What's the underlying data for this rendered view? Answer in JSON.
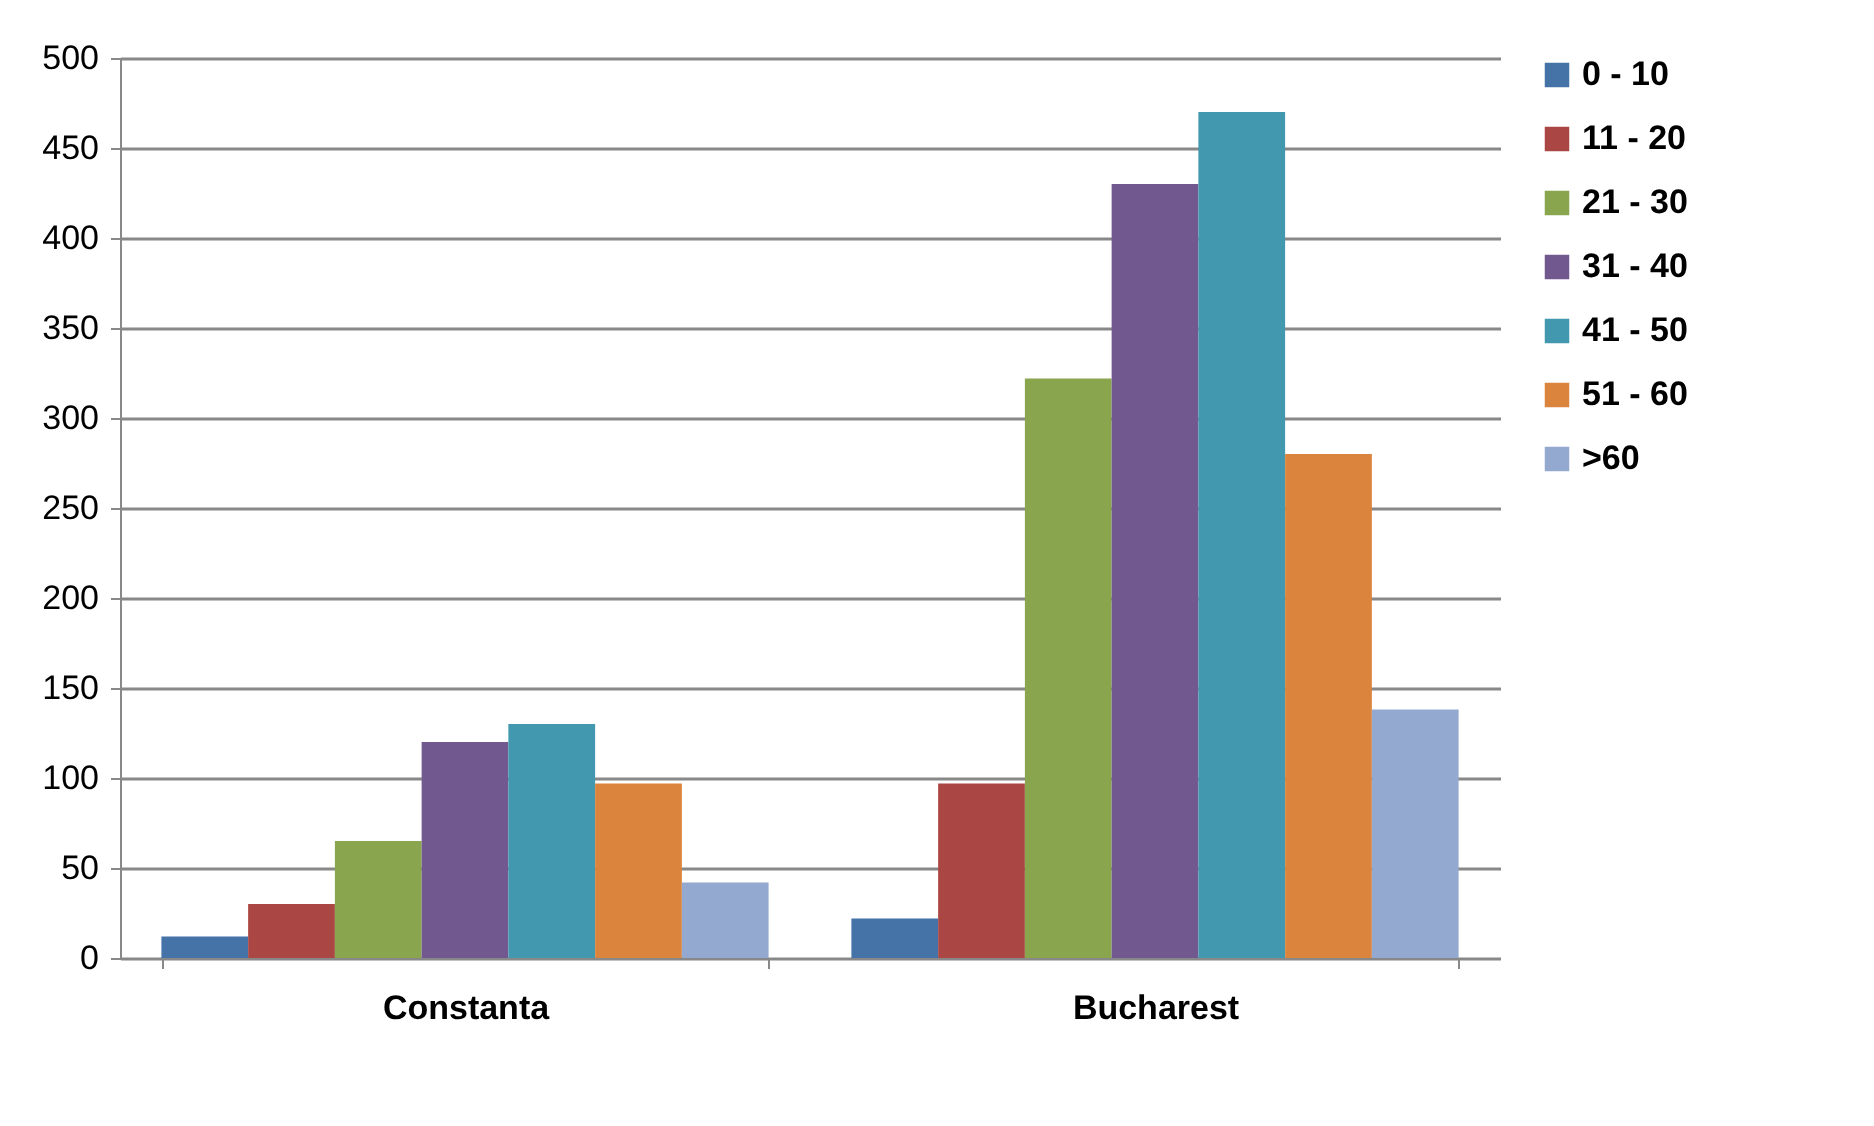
{
  "chart_data": {
    "type": "bar",
    "categories": [
      "Constanta",
      "Bucharest"
    ],
    "series": [
      {
        "name": "0 - 10",
        "color": "#4572a7",
        "values": [
          12,
          22
        ]
      },
      {
        "name": "11 - 20",
        "color": "#aa4643",
        "values": [
          30,
          97
        ]
      },
      {
        "name": "21 - 30",
        "color": "#89a54e",
        "values": [
          65,
          322
        ]
      },
      {
        "name": "31 - 40",
        "color": "#71588f",
        "values": [
          120,
          430
        ]
      },
      {
        "name": "41 - 50",
        "color": "#4198af",
        "values": [
          130,
          470
        ]
      },
      {
        "name": "51 - 60",
        "color": "#db843d",
        "values": [
          97,
          280
        ]
      },
      {
        "name": ">60",
        "color": "#93a9cf",
        "values": [
          42,
          138
        ]
      }
    ],
    "ylim": [
      0,
      500
    ],
    "yticks": [
      0,
      50,
      100,
      150,
      200,
      250,
      300,
      350,
      400,
      450,
      500
    ],
    "grid": "y",
    "legend": "right"
  }
}
